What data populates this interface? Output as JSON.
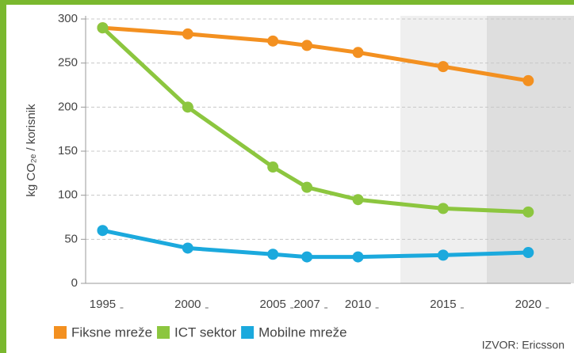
{
  "chart_data": {
    "type": "line",
    "ylabel": "kg CO₂ₑ / korisnik",
    "source": "IZVOR: Ericsson",
    "x": [
      1995,
      2000,
      2005,
      2007,
      2010,
      2015,
      2020
    ],
    "xlim": [
      1994,
      2022.5
    ],
    "xticks": [
      1995,
      2000,
      2005,
      2007,
      2010,
      2015,
      2020
    ],
    "ylim": [
      0,
      300
    ],
    "yticks": [
      0,
      50,
      100,
      150,
      200,
      250,
      300
    ],
    "grid": true,
    "legend": "bottom",
    "series": [
      {
        "name": "Fiksne mreže",
        "color": "#f39020",
        "values": [
          290,
          283,
          275,
          270,
          262,
          246,
          230
        ]
      },
      {
        "name": "ICT sektor",
        "color": "#8cc63f",
        "values": [
          290,
          200,
          132,
          109,
          95,
          85,
          81
        ]
      },
      {
        "name": "Mobilne mreže",
        "color": "#1ba9dd",
        "values": [
          60,
          40,
          33,
          30,
          30,
          32,
          35
        ]
      }
    ]
  }
}
